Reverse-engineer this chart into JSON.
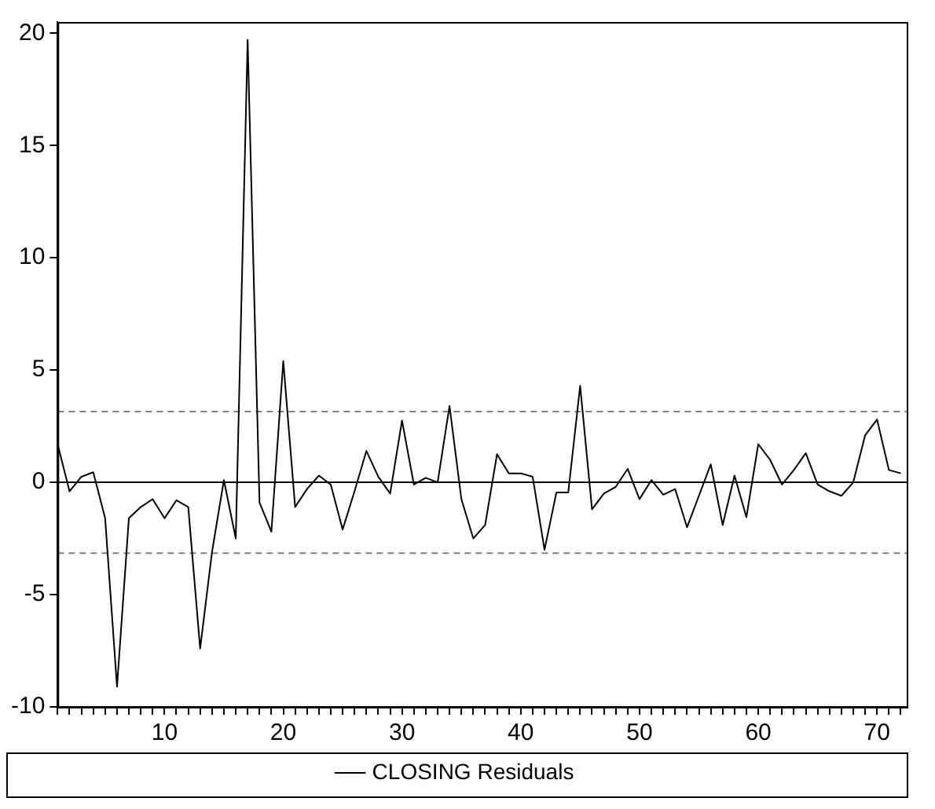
{
  "chart_data": {
    "type": "line",
    "x": [
      1,
      2,
      3,
      4,
      5,
      6,
      7,
      8,
      9,
      10,
      11,
      12,
      13,
      14,
      15,
      16,
      17,
      18,
      19,
      20,
      21,
      22,
      23,
      24,
      25,
      26,
      27,
      28,
      29,
      30,
      31,
      32,
      33,
      34,
      35,
      36,
      37,
      38,
      39,
      40,
      41,
      42,
      43,
      44,
      45,
      46,
      47,
      48,
      49,
      50,
      51,
      52,
      53,
      54,
      55,
      56,
      57,
      58,
      59,
      60,
      61,
      62,
      63,
      64,
      65,
      66,
      67,
      68,
      69,
      70,
      71,
      72
    ],
    "series": [
      {
        "name": "CLOSING Residuals",
        "color": "#000000",
        "values": [
          1.7,
          -0.4,
          0.25,
          0.45,
          -1.6,
          -9.1,
          -1.6,
          -1.1,
          -0.75,
          -1.6,
          -0.8,
          -1.1,
          -7.4,
          -3.1,
          0.1,
          -2.5,
          19.7,
          -0.9,
          -2.2,
          5.4,
          -1.1,
          -0.3,
          0.3,
          -0.1,
          -2.1,
          -0.4,
          1.4,
          0.25,
          -0.5,
          2.75,
          -0.1,
          0.2,
          0,
          3.4,
          -0.75,
          -2.5,
          -1.9,
          1.25,
          0.4,
          0.4,
          0.25,
          -3,
          -0.45,
          -0.45,
          4.3,
          -1.2,
          -0.5,
          -0.2,
          0.6,
          -0.75,
          0.1,
          -0.55,
          -0.3,
          -2,
          -0.6,
          0.8,
          -1.9,
          0.3,
          -1.55,
          1.7,
          1,
          -0.1,
          0.55,
          1.3,
          -0.1,
          -0.4,
          -0.6,
          0,
          2.1,
          2.8,
          0.55,
          0.4
        ]
      }
    ],
    "xlim": [
      1,
      72.5
    ],
    "xticks": [
      {
        "value": 1,
        "label": null
      },
      {
        "value": 2,
        "label": null
      },
      {
        "value": 3,
        "label": null
      },
      {
        "value": 4,
        "label": null
      },
      {
        "value": 5,
        "label": null
      },
      {
        "value": 6,
        "label": null
      },
      {
        "value": 7,
        "label": null
      },
      {
        "value": 8,
        "label": null
      },
      {
        "value": 9,
        "label": null
      },
      10,
      {
        "value": 11,
        "label": null
      },
      {
        "value": 12,
        "label": null
      },
      {
        "value": 13,
        "label": null
      },
      {
        "value": 14,
        "label": null
      },
      {
        "value": 15,
        "label": null
      },
      {
        "value": 16,
        "label": null
      },
      {
        "value": 17,
        "label": null
      },
      {
        "value": 18,
        "label": null
      },
      {
        "value": 19,
        "label": null
      },
      20,
      {
        "value": 21,
        "label": null
      },
      {
        "value": 22,
        "label": null
      },
      {
        "value": 23,
        "label": null
      },
      {
        "value": 24,
        "label": null
      },
      {
        "value": 25,
        "label": null
      },
      {
        "value": 26,
        "label": null
      },
      {
        "value": 27,
        "label": null
      },
      {
        "value": 28,
        "label": null
      },
      {
        "value": 29,
        "label": null
      },
      30,
      {
        "value": 31,
        "label": null
      },
      {
        "value": 32,
        "label": null
      },
      {
        "value": 33,
        "label": null
      },
      {
        "value": 34,
        "label": null
      },
      {
        "value": 35,
        "label": null
      },
      {
        "value": 36,
        "label": null
      },
      {
        "value": 37,
        "label": null
      },
      {
        "value": 38,
        "label": null
      },
      {
        "value": 39,
        "label": null
      },
      40,
      {
        "value": 41,
        "label": null
      },
      {
        "value": 42,
        "label": null
      },
      {
        "value": 43,
        "label": null
      },
      {
        "value": 44,
        "label": null
      },
      {
        "value": 45,
        "label": null
      },
      {
        "value": 46,
        "label": null
      },
      {
        "value": 47,
        "label": null
      },
      {
        "value": 48,
        "label": null
      },
      {
        "value": 49,
        "label": null
      },
      50,
      {
        "value": 51,
        "label": null
      },
      {
        "value": 52,
        "label": null
      },
      {
        "value": 53,
        "label": null
      },
      {
        "value": 54,
        "label": null
      },
      {
        "value": 55,
        "label": null
      },
      {
        "value": 56,
        "label": null
      },
      {
        "value": 57,
        "label": null
      },
      {
        "value": 58,
        "label": null
      },
      {
        "value": 59,
        "label": null
      },
      60,
      {
        "value": 61,
        "label": null
      },
      {
        "value": 62,
        "label": null
      },
      {
        "value": 63,
        "label": null
      },
      {
        "value": 64,
        "label": null
      },
      {
        "value": 65,
        "label": null
      },
      {
        "value": 66,
        "label": null
      },
      {
        "value": 67,
        "label": null
      },
      {
        "value": 68,
        "label": null
      },
      {
        "value": 69,
        "label": null
      },
      70,
      {
        "value": 71,
        "label": null
      },
      {
        "value": 72,
        "label": null
      }
    ],
    "ylim": [
      -10,
      20.5
    ],
    "yticks": [
      -10,
      -5,
      0,
      5,
      10,
      15,
      20
    ],
    "ref_lines": [
      {
        "axis": "y",
        "value": 0,
        "color": "#000000",
        "line_style": "solid"
      },
      {
        "axis": "y",
        "value": 3.15,
        "color": "#808080",
        "line_style": "dashed"
      },
      {
        "axis": "y",
        "value": -3.15,
        "color": "#808080",
        "line_style": "dashed"
      }
    ],
    "grid": false,
    "legend": "bottom",
    "marker": "none",
    "line_style": "solid"
  }
}
